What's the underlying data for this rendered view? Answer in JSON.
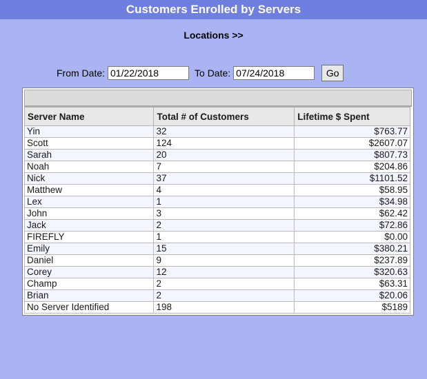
{
  "header": {
    "title": "Customers Enrolled by Servers"
  },
  "nav": {
    "locations_link": "Locations >>"
  },
  "filters": {
    "from_label": "From Date:",
    "from_value": "01/22/2018",
    "to_label": "To Date:",
    "to_value": "07/24/2018",
    "go_label": "Go"
  },
  "table": {
    "columns": [
      "Server Name",
      "Total # of Customers",
      "Lifetime $ Spent"
    ],
    "rows": [
      {
        "name": "Yin",
        "count": "32",
        "spent": "$763.77"
      },
      {
        "name": "Scott",
        "count": "124",
        "spent": "$2607.07"
      },
      {
        "name": "Sarah",
        "count": "20",
        "spent": "$807.73"
      },
      {
        "name": "Noah",
        "count": "7",
        "spent": "$204.86"
      },
      {
        "name": "Nick",
        "count": "37",
        "spent": "$1101.52"
      },
      {
        "name": "Matthew",
        "count": "4",
        "spent": "$58.95"
      },
      {
        "name": "Lex",
        "count": "1",
        "spent": "$34.98"
      },
      {
        "name": "John",
        "count": "3",
        "spent": "$62.42"
      },
      {
        "name": "Jack",
        "count": "2",
        "spent": "$72.86"
      },
      {
        "name": "FIREFLY",
        "count": "1",
        "spent": "$0.00"
      },
      {
        "name": "Emily",
        "count": "15",
        "spent": "$380.21"
      },
      {
        "name": "Daniel",
        "count": "9",
        "spent": "$237.89"
      },
      {
        "name": "Corey",
        "count": "12",
        "spent": "$320.63"
      },
      {
        "name": "Champ",
        "count": "2",
        "spent": "$63.31"
      },
      {
        "name": "Brian",
        "count": "2",
        "spent": "$20.06"
      },
      {
        "name": "No Server Identified",
        "count": "198",
        "spent": "$5189"
      }
    ]
  }
}
